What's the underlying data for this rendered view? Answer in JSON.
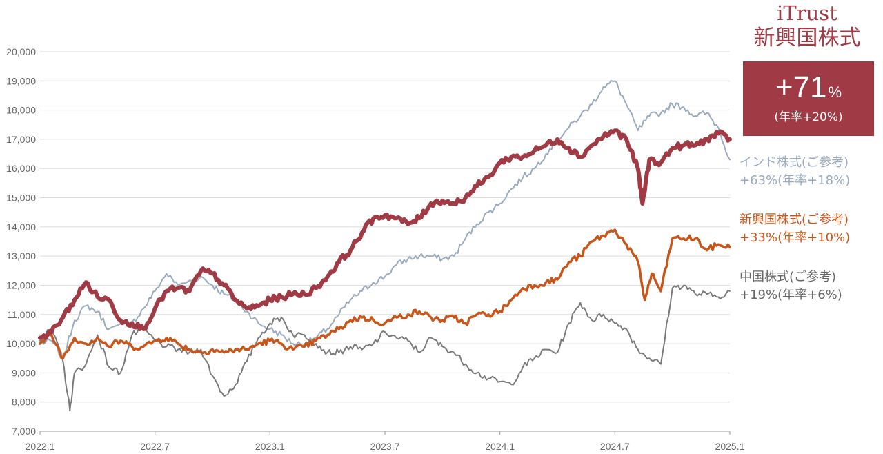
{
  "brand": {
    "line1": "iTrust",
    "line2": "新興国株式"
  },
  "badge": {
    "value": "+71",
    "unit": "%",
    "annual": "(年率+20%)"
  },
  "legend": [
    {
      "name": "インド株式(ご参考)",
      "change": "+63%(年率+18%)",
      "color": "#9aaabf"
    },
    {
      "name": "新興国株式(ご参考)",
      "change": "+33%(年率+10%)",
      "color": "#c8561a"
    },
    {
      "name": "中国株式(ご参考)",
      "change": "+19%(年率+6%)",
      "color": "#7a7a7a"
    }
  ],
  "chart_data": {
    "type": "line",
    "x_ticks": [
      "2022.1",
      "2022.7",
      "2023.1",
      "2023.7",
      "2024.1",
      "2024.7",
      "2025.1"
    ],
    "y_ticks": [
      "7,000",
      "8,000",
      "9,000",
      "10,000",
      "11,000",
      "12,000",
      "13,000",
      "14,000",
      "15,000",
      "16,000",
      "17,000",
      "18,000",
      "19,000",
      "20,000"
    ],
    "ylim": [
      7000,
      20000
    ],
    "xlim": [
      2022.0,
      2025.0
    ],
    "grid": true,
    "series": [
      {
        "name": "インド株式(ご参考)",
        "color": "#9aaabf",
        "width": 2,
        "points": [
          [
            2022.0,
            10000
          ],
          [
            2022.05,
            10100
          ],
          [
            2022.1,
            9500
          ],
          [
            2022.15,
            10800
          ],
          [
            2022.2,
            11300
          ],
          [
            2022.25,
            11100
          ],
          [
            2022.3,
            10500
          ],
          [
            2022.4,
            10700
          ],
          [
            2022.45,
            11200
          ],
          [
            2022.5,
            11800
          ],
          [
            2022.55,
            12400
          ],
          [
            2022.6,
            12000
          ],
          [
            2022.7,
            12300
          ],
          [
            2022.75,
            12000
          ],
          [
            2022.8,
            11700
          ],
          [
            2022.85,
            11500
          ],
          [
            2022.9,
            11100
          ],
          [
            2022.95,
            10700
          ],
          [
            2023.0,
            10500
          ],
          [
            2023.05,
            10300
          ],
          [
            2023.1,
            10000
          ],
          [
            2023.15,
            10000
          ],
          [
            2023.2,
            10200
          ],
          [
            2023.25,
            10500
          ],
          [
            2023.3,
            11000
          ],
          [
            2023.35,
            11500
          ],
          [
            2023.4,
            11800
          ],
          [
            2023.45,
            12100
          ],
          [
            2023.5,
            12300
          ],
          [
            2023.55,
            12700
          ],
          [
            2023.6,
            12900
          ],
          [
            2023.65,
            13000
          ],
          [
            2023.7,
            13000
          ],
          [
            2023.75,
            12900
          ],
          [
            2023.8,
            13000
          ],
          [
            2023.85,
            13600
          ],
          [
            2023.9,
            14100
          ],
          [
            2023.95,
            14500
          ],
          [
            2024.0,
            14800
          ],
          [
            2024.05,
            15300
          ],
          [
            2024.1,
            15700
          ],
          [
            2024.15,
            16000
          ],
          [
            2024.2,
            16500
          ],
          [
            2024.25,
            17000
          ],
          [
            2024.3,
            17400
          ],
          [
            2024.35,
            17800
          ],
          [
            2024.4,
            18200
          ],
          [
            2024.45,
            18800
          ],
          [
            2024.5,
            19000
          ],
          [
            2024.55,
            18200
          ],
          [
            2024.6,
            17300
          ],
          [
            2024.65,
            17800
          ],
          [
            2024.7,
            17900
          ],
          [
            2024.75,
            18200
          ],
          [
            2024.8,
            18100
          ],
          [
            2024.85,
            17800
          ],
          [
            2024.9,
            17900
          ],
          [
            2024.95,
            17400
          ],
          [
            2025.0,
            16300
          ]
        ]
      },
      {
        "name": "中国株式(ご参考)",
        "color": "#7a7a7a",
        "width": 2,
        "points": [
          [
            2022.0,
            10100
          ],
          [
            2022.05,
            10500
          ],
          [
            2022.1,
            9400
          ],
          [
            2022.13,
            7700
          ],
          [
            2022.15,
            9000
          ],
          [
            2022.2,
            9300
          ],
          [
            2022.25,
            10300
          ],
          [
            2022.3,
            9200
          ],
          [
            2022.35,
            9000
          ],
          [
            2022.4,
            10300
          ],
          [
            2022.45,
            10500
          ],
          [
            2022.5,
            10100
          ],
          [
            2022.55,
            9900
          ],
          [
            2022.6,
            9800
          ],
          [
            2022.65,
            9700
          ],
          [
            2022.7,
            9800
          ],
          [
            2022.75,
            8900
          ],
          [
            2022.8,
            8200
          ],
          [
            2022.85,
            8600
          ],
          [
            2022.9,
            9400
          ],
          [
            2022.95,
            10200
          ],
          [
            2023.0,
            10700
          ],
          [
            2023.05,
            10900
          ],
          [
            2023.1,
            10300
          ],
          [
            2023.15,
            10300
          ],
          [
            2023.2,
            10000
          ],
          [
            2023.25,
            9700
          ],
          [
            2023.3,
            9700
          ],
          [
            2023.35,
            9900
          ],
          [
            2023.4,
            9800
          ],
          [
            2023.45,
            10000
          ],
          [
            2023.5,
            10400
          ],
          [
            2023.55,
            10200
          ],
          [
            2023.6,
            10100
          ],
          [
            2023.65,
            9700
          ],
          [
            2023.7,
            10200
          ],
          [
            2023.75,
            9900
          ],
          [
            2023.8,
            9700
          ],
          [
            2023.85,
            9300
          ],
          [
            2023.9,
            9000
          ],
          [
            2023.95,
            8800
          ],
          [
            2024.0,
            8700
          ],
          [
            2024.05,
            8600
          ],
          [
            2024.1,
            9200
          ],
          [
            2024.15,
            9500
          ],
          [
            2024.2,
            9800
          ],
          [
            2024.25,
            9700
          ],
          [
            2024.3,
            10700
          ],
          [
            2024.35,
            11400
          ],
          [
            2024.4,
            10800
          ],
          [
            2024.45,
            11000
          ],
          [
            2024.5,
            10700
          ],
          [
            2024.55,
            10500
          ],
          [
            2024.6,
            9800
          ],
          [
            2024.65,
            9500
          ],
          [
            2024.7,
            9300
          ],
          [
            2024.75,
            11900
          ],
          [
            2024.8,
            12000
          ],
          [
            2024.85,
            11700
          ],
          [
            2024.9,
            11700
          ],
          [
            2024.95,
            11600
          ],
          [
            2025.0,
            11800
          ]
        ]
      },
      {
        "name": "新興国株式(ご参考)",
        "color": "#c8561a",
        "width": 3.5,
        "points": [
          [
            2022.0,
            10000
          ],
          [
            2022.05,
            10300
          ],
          [
            2022.1,
            9500
          ],
          [
            2022.15,
            10200
          ],
          [
            2022.2,
            10000
          ],
          [
            2022.25,
            10200
          ],
          [
            2022.3,
            9900
          ],
          [
            2022.35,
            10100
          ],
          [
            2022.4,
            9900
          ],
          [
            2022.45,
            9900
          ],
          [
            2022.5,
            10100
          ],
          [
            2022.55,
            10200
          ],
          [
            2022.6,
            10000
          ],
          [
            2022.65,
            9800
          ],
          [
            2022.7,
            9700
          ],
          [
            2022.75,
            9800
          ],
          [
            2022.8,
            9700
          ],
          [
            2022.85,
            9800
          ],
          [
            2022.9,
            9800
          ],
          [
            2022.95,
            10000
          ],
          [
            2023.0,
            10100
          ],
          [
            2023.05,
            10000
          ],
          [
            2023.1,
            9800
          ],
          [
            2023.15,
            9900
          ],
          [
            2023.2,
            10100
          ],
          [
            2023.25,
            10300
          ],
          [
            2023.3,
            10500
          ],
          [
            2023.35,
            10800
          ],
          [
            2023.4,
            10900
          ],
          [
            2023.45,
            10800
          ],
          [
            2023.5,
            10700
          ],
          [
            2023.55,
            10900
          ],
          [
            2023.6,
            11000
          ],
          [
            2023.65,
            11100
          ],
          [
            2023.7,
            10900
          ],
          [
            2023.75,
            10800
          ],
          [
            2023.8,
            10900
          ],
          [
            2023.85,
            10700
          ],
          [
            2023.9,
            11000
          ],
          [
            2023.95,
            11000
          ],
          [
            2024.0,
            11100
          ],
          [
            2024.05,
            11500
          ],
          [
            2024.1,
            11900
          ],
          [
            2024.15,
            12000
          ],
          [
            2024.2,
            12100
          ],
          [
            2024.25,
            12200
          ],
          [
            2024.3,
            12800
          ],
          [
            2024.35,
            13000
          ],
          [
            2024.4,
            13500
          ],
          [
            2024.45,
            13700
          ],
          [
            2024.5,
            13900
          ],
          [
            2024.55,
            13400
          ],
          [
            2024.6,
            12800
          ],
          [
            2024.63,
            11500
          ],
          [
            2024.66,
            12400
          ],
          [
            2024.7,
            11800
          ],
          [
            2024.75,
            13600
          ],
          [
            2024.8,
            13600
          ],
          [
            2024.85,
            13600
          ],
          [
            2024.9,
            13200
          ],
          [
            2024.95,
            13400
          ],
          [
            2025.0,
            13300
          ]
        ]
      },
      {
        "name": "iTrust 新興国株式",
        "color": "#a03a44",
        "width": 6,
        "points": [
          [
            2022.0,
            10200
          ],
          [
            2022.05,
            10400
          ],
          [
            2022.1,
            10900
          ],
          [
            2022.15,
            11500
          ],
          [
            2022.2,
            12100
          ],
          [
            2022.25,
            11600
          ],
          [
            2022.3,
            11500
          ],
          [
            2022.35,
            10800
          ],
          [
            2022.4,
            10700
          ],
          [
            2022.45,
            10500
          ],
          [
            2022.5,
            11200
          ],
          [
            2022.55,
            11800
          ],
          [
            2022.6,
            11900
          ],
          [
            2022.65,
            11800
          ],
          [
            2022.7,
            12500
          ],
          [
            2022.75,
            12400
          ],
          [
            2022.8,
            12000
          ],
          [
            2022.85,
            11500
          ],
          [
            2022.9,
            11200
          ],
          [
            2022.95,
            11300
          ],
          [
            2023.0,
            11500
          ],
          [
            2023.05,
            11600
          ],
          [
            2023.1,
            11700
          ],
          [
            2023.15,
            11700
          ],
          [
            2023.2,
            11900
          ],
          [
            2023.25,
            12300
          ],
          [
            2023.3,
            12800
          ],
          [
            2023.35,
            13200
          ],
          [
            2023.4,
            13800
          ],
          [
            2023.45,
            14300
          ],
          [
            2023.5,
            14400
          ],
          [
            2023.55,
            14300
          ],
          [
            2023.6,
            14100
          ],
          [
            2023.65,
            14300
          ],
          [
            2023.7,
            14800
          ],
          [
            2023.75,
            14900
          ],
          [
            2023.8,
            14800
          ],
          [
            2023.85,
            15000
          ],
          [
            2023.9,
            15400
          ],
          [
            2023.95,
            15700
          ],
          [
            2024.0,
            16200
          ],
          [
            2024.05,
            16400
          ],
          [
            2024.1,
            16400
          ],
          [
            2024.15,
            16600
          ],
          [
            2024.2,
            16800
          ],
          [
            2024.25,
            17000
          ],
          [
            2024.3,
            16700
          ],
          [
            2024.35,
            16400
          ],
          [
            2024.4,
            16800
          ],
          [
            2024.45,
            17100
          ],
          [
            2024.5,
            17300
          ],
          [
            2024.55,
            17000
          ],
          [
            2024.6,
            16000
          ],
          [
            2024.62,
            14800
          ],
          [
            2024.65,
            16300
          ],
          [
            2024.7,
            16200
          ],
          [
            2024.75,
            16700
          ],
          [
            2024.8,
            16800
          ],
          [
            2024.85,
            16800
          ],
          [
            2024.9,
            17000
          ],
          [
            2024.95,
            17200
          ],
          [
            2025.0,
            17000
          ]
        ]
      }
    ]
  }
}
